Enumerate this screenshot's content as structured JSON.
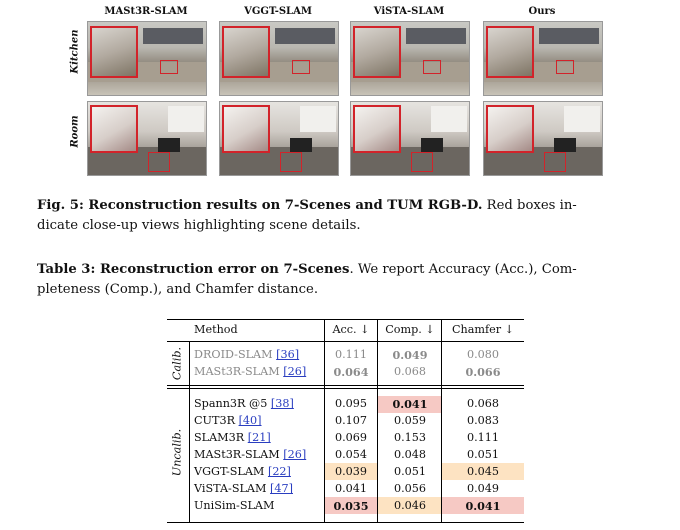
{
  "figure": {
    "columns": [
      "MASt3R-SLAM",
      "VGGT-SLAM",
      "ViSTA-SLAM",
      "Ours"
    ],
    "rows": [
      "Kitchen",
      "Room"
    ]
  },
  "fig_caption": {
    "label": "Fig. 5: Reconstruction results on 7-Scenes and TUM RGB-D.",
    "text": " Red boxes in-",
    "line2": "dicate close-up views highlighting scene details."
  },
  "table_caption": {
    "label": "Table 3: Reconstruction error on 7-Scenes",
    "text": ". We report Accuracy (Acc.), Com-",
    "line2": "pleteness (Comp.), and Chamfer distance."
  },
  "table": {
    "headers": [
      "Method",
      "Acc. ↓",
      "Comp. ↓",
      "Chamfer ↓"
    ],
    "groups": [
      {
        "label": "Calib.",
        "rows": [
          {
            "method": "DROID-SLAM",
            "cite": "[36]",
            "acc": "0.111",
            "comp": "0.049",
            "chamfer": "0.080"
          },
          {
            "method": "MASt3R-SLAM",
            "cite": "[26]",
            "acc": "0.064",
            "comp": "0.068",
            "chamfer": "0.066"
          }
        ]
      },
      {
        "label": "Uncalib.",
        "rows": [
          {
            "method": "Spann3R @5",
            "cite": "[38]",
            "acc": "0.095",
            "comp": "0.041",
            "chamfer": "0.068"
          },
          {
            "method": "CUT3R",
            "cite": "[40]",
            "acc": "0.107",
            "comp": "0.059",
            "chamfer": "0.083"
          },
          {
            "method": "SLAM3R",
            "cite": "[21]",
            "acc": "0.069",
            "comp": "0.153",
            "chamfer": "0.111"
          },
          {
            "method": "MASt3R-SLAM",
            "cite": "[26]",
            "acc": "0.054",
            "comp": "0.048",
            "chamfer": "0.051"
          },
          {
            "method": "VGGT-SLAM",
            "cite": "[22]",
            "acc": "0.039",
            "comp": "0.051",
            "chamfer": "0.045"
          },
          {
            "method": "ViSTA-SLAM",
            "cite": "[47]",
            "acc": "0.041",
            "comp": "0.056",
            "chamfer": "0.049"
          },
          {
            "method": "UniSim-SLAM",
            "cite": "",
            "acc": "0.035",
            "comp": "0.046",
            "chamfer": "0.041"
          }
        ]
      }
    ],
    "colors": {
      "best": "#f6c9c4",
      "second": "#fde3c2"
    }
  }
}
